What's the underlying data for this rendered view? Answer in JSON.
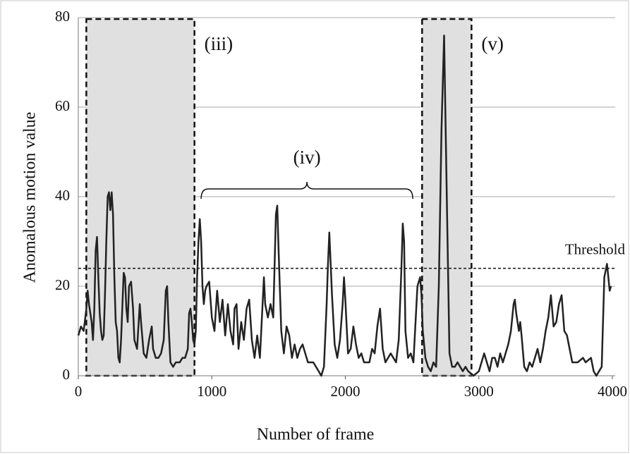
{
  "chart_data": {
    "type": "line",
    "xlabel": "Number of frame",
    "ylabel": "Anomalous motion value",
    "xlim": [
      0,
      4000
    ],
    "xticks": [
      0,
      1000,
      2000,
      3000,
      4000
    ],
    "ylim": [
      0,
      80
    ],
    "yticks": [
      0,
      20,
      40,
      60,
      80
    ],
    "grid": true,
    "color": "#222222",
    "x": [
      0,
      20,
      40,
      60,
      70,
      80,
      90,
      100,
      110,
      120,
      130,
      140,
      150,
      160,
      170,
      180,
      190,
      200,
      210,
      220,
      230,
      240,
      250,
      260,
      270,
      280,
      290,
      300,
      310,
      320,
      340,
      350,
      360,
      370,
      380,
      395,
      410,
      420,
      440,
      460,
      470,
      490,
      510,
      530,
      550,
      560,
      580,
      600,
      620,
      640,
      655,
      665,
      675,
      690,
      710,
      730,
      760,
      780,
      800,
      820,
      830,
      840,
      850,
      860,
      870,
      880,
      890,
      900,
      910,
      920,
      930,
      940,
      950,
      960,
      980,
      1000,
      1020,
      1040,
      1060,
      1080,
      1100,
      1120,
      1140,
      1160,
      1170,
      1185,
      1200,
      1220,
      1240,
      1260,
      1280,
      1300,
      1320,
      1340,
      1360,
      1380,
      1390,
      1400,
      1420,
      1440,
      1460,
      1480,
      1490,
      1500,
      1520,
      1540,
      1560,
      1580,
      1600,
      1620,
      1640,
      1660,
      1680,
      1700,
      1720,
      1760,
      1800,
      1820,
      1840,
      1860,
      1870,
      1880,
      1890,
      1900,
      1920,
      1940,
      1960,
      1980,
      1990,
      2000,
      2020,
      2040,
      2060,
      2080,
      2100,
      2120,
      2140,
      2180,
      2200,
      2220,
      2240,
      2260,
      2280,
      2300,
      2320,
      2340,
      2360,
      2380,
      2400,
      2420,
      2430,
      2440,
      2450,
      2470,
      2490,
      2510,
      2540,
      2560,
      2570,
      2580,
      2600,
      2620,
      2640,
      2660,
      2680,
      2700,
      2720,
      2740,
      2760,
      2780,
      2800,
      2820,
      2840,
      2860,
      2880,
      2900,
      2920,
      2960,
      3000,
      3040,
      3060,
      3080,
      3100,
      3120,
      3140,
      3160,
      3180,
      3200,
      3220,
      3240,
      3260,
      3270,
      3280,
      3300,
      3310,
      3320,
      3340,
      3360,
      3380,
      3400,
      3420,
      3440,
      3460,
      3480,
      3500,
      3520,
      3540,
      3560,
      3580,
      3600,
      3620,
      3640,
      3660,
      3680,
      3700,
      3740,
      3780,
      3800,
      3840,
      3860,
      3880,
      3900,
      3920,
      3940,
      3960,
      3980,
      3990
    ],
    "values": [
      9,
      11,
      10,
      15,
      19,
      16,
      14,
      12,
      8,
      15,
      28,
      31,
      22,
      14,
      10,
      8,
      9,
      18,
      30,
      40,
      41,
      37,
      41,
      36,
      22,
      12,
      10,
      4,
      3,
      8,
      23,
      22,
      15,
      12,
      20,
      21,
      15,
      8,
      6,
      16,
      12,
      5,
      4,
      8,
      11,
      6,
      4,
      4,
      5,
      8,
      19,
      20,
      12,
      3,
      2,
      3,
      3,
      4,
      4,
      6,
      14,
      15,
      12,
      8,
      7,
      10,
      22,
      30,
      35,
      30,
      20,
      16,
      19,
      20,
      21,
      13,
      10,
      19,
      12,
      17,
      9,
      16,
      10,
      7,
      15,
      16,
      6,
      12,
      8,
      15,
      17,
      8,
      4,
      9,
      4,
      16,
      22,
      16,
      13,
      16,
      13,
      36,
      38,
      28,
      10,
      5,
      11,
      9,
      4,
      7,
      4,
      6,
      7,
      5,
      3,
      3,
      1,
      0,
      2,
      16,
      25,
      32,
      25,
      18,
      7,
      4,
      8,
      16,
      22,
      17,
      5,
      6,
      11,
      7,
      4,
      5,
      3,
      3,
      6,
      5,
      11,
      15,
      6,
      3,
      4,
      5,
      4,
      3,
      8,
      24,
      34,
      30,
      10,
      4,
      5,
      3,
      20,
      22,
      18,
      10,
      4,
      2,
      1,
      3,
      2,
      20,
      55,
      76,
      40,
      5,
      2,
      2,
      3,
      2,
      1,
      2,
      1,
      0,
      1,
      5,
      3,
      1,
      4,
      4,
      2,
      5,
      3,
      5,
      7,
      10,
      16,
      17,
      14,
      10,
      12,
      9,
      2,
      1,
      3,
      2,
      4,
      6,
      3,
      6,
      10,
      13,
      18,
      11,
      12,
      16,
      18,
      10,
      9,
      6,
      3,
      3,
      4,
      3,
      4,
      1,
      0,
      1,
      2,
      22,
      25,
      19,
      20
    ],
    "regions": [
      {
        "label": "(iii)",
        "x": [
          60,
          870
        ]
      },
      {
        "label": "(v)",
        "x": [
          2575,
          2945
        ]
      }
    ],
    "brace": {
      "label": "(iv)",
      "x": [
        920,
        2505
      ]
    },
    "threshold": {
      "label": "Threshold",
      "value": 24
    }
  }
}
